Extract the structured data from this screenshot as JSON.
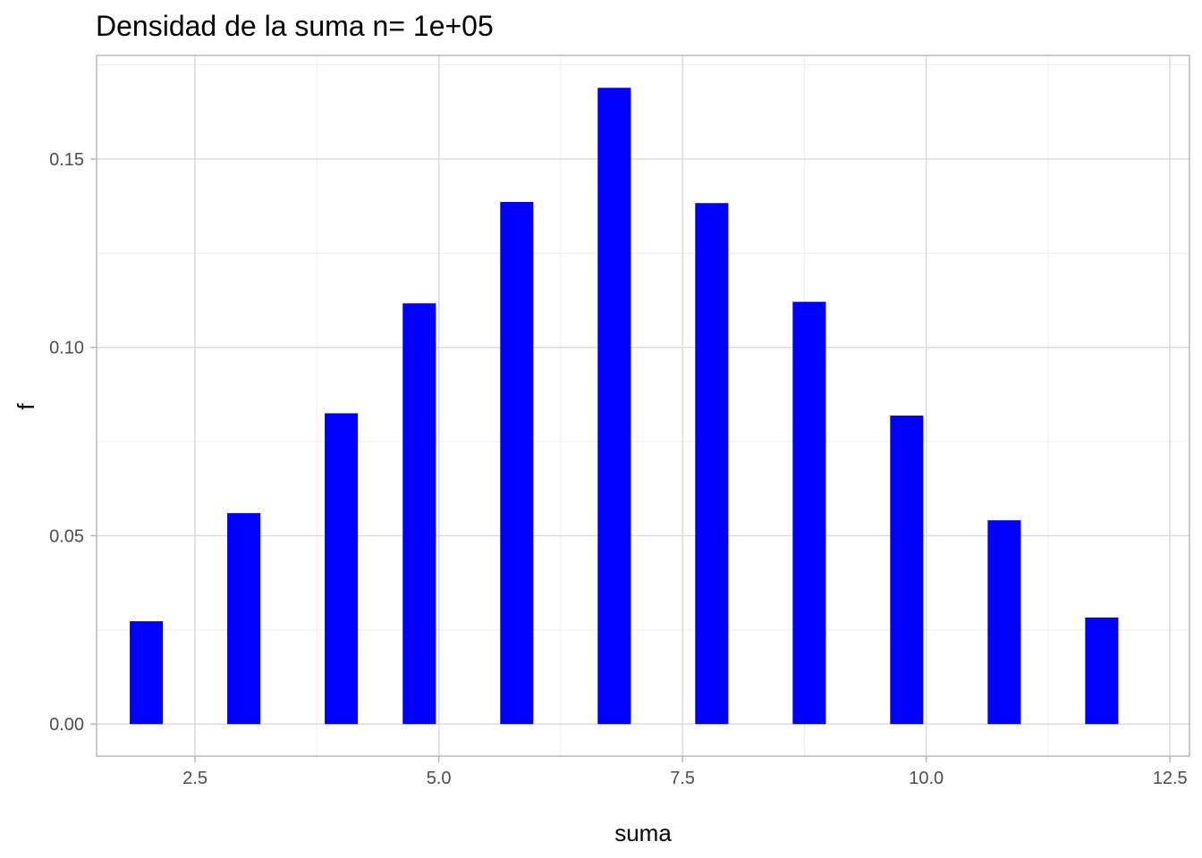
{
  "chart_data": {
    "type": "bar",
    "title": "Densidad de la suma n= 1e+05",
    "xlabel": "suma",
    "ylabel": "f",
    "x": [
      2,
      3,
      4,
      5,
      6,
      7,
      8,
      9,
      10,
      11,
      12
    ],
    "bar_centers": [
      2,
      3,
      4.0,
      4.8,
      5.8,
      6.8,
      7.8,
      8.8,
      9.8,
      10.8,
      11.8
    ],
    "values": [
      0.0273,
      0.056,
      0.0825,
      0.1117,
      0.1386,
      0.1689,
      0.1383,
      0.1121,
      0.0819,
      0.0541,
      0.0283
    ],
    "xlim": [
      1.49,
      12.7
    ],
    "ylim": [
      -0.0085,
      0.1775
    ],
    "x_ticks": [
      {
        "value": 2.5,
        "label": "2.5"
      },
      {
        "value": 5.0,
        "label": "5.0"
      },
      {
        "value": 7.5,
        "label": "7.5"
      },
      {
        "value": 10.0,
        "label": "10.0"
      },
      {
        "value": 12.5,
        "label": "12.5"
      }
    ],
    "y_ticks": [
      {
        "value": 0.0,
        "label": "0.00"
      },
      {
        "value": 0.05,
        "label": "0.05"
      },
      {
        "value": 0.1,
        "label": "0.10"
      },
      {
        "value": 0.15,
        "label": "0.15"
      }
    ],
    "x_minor": [
      3.75,
      6.25,
      8.75,
      11.25
    ],
    "y_minor": [
      0.025,
      0.075,
      0.125,
      0.175
    ],
    "bar_color": "#0000ff",
    "grid": true,
    "legend": "none"
  }
}
